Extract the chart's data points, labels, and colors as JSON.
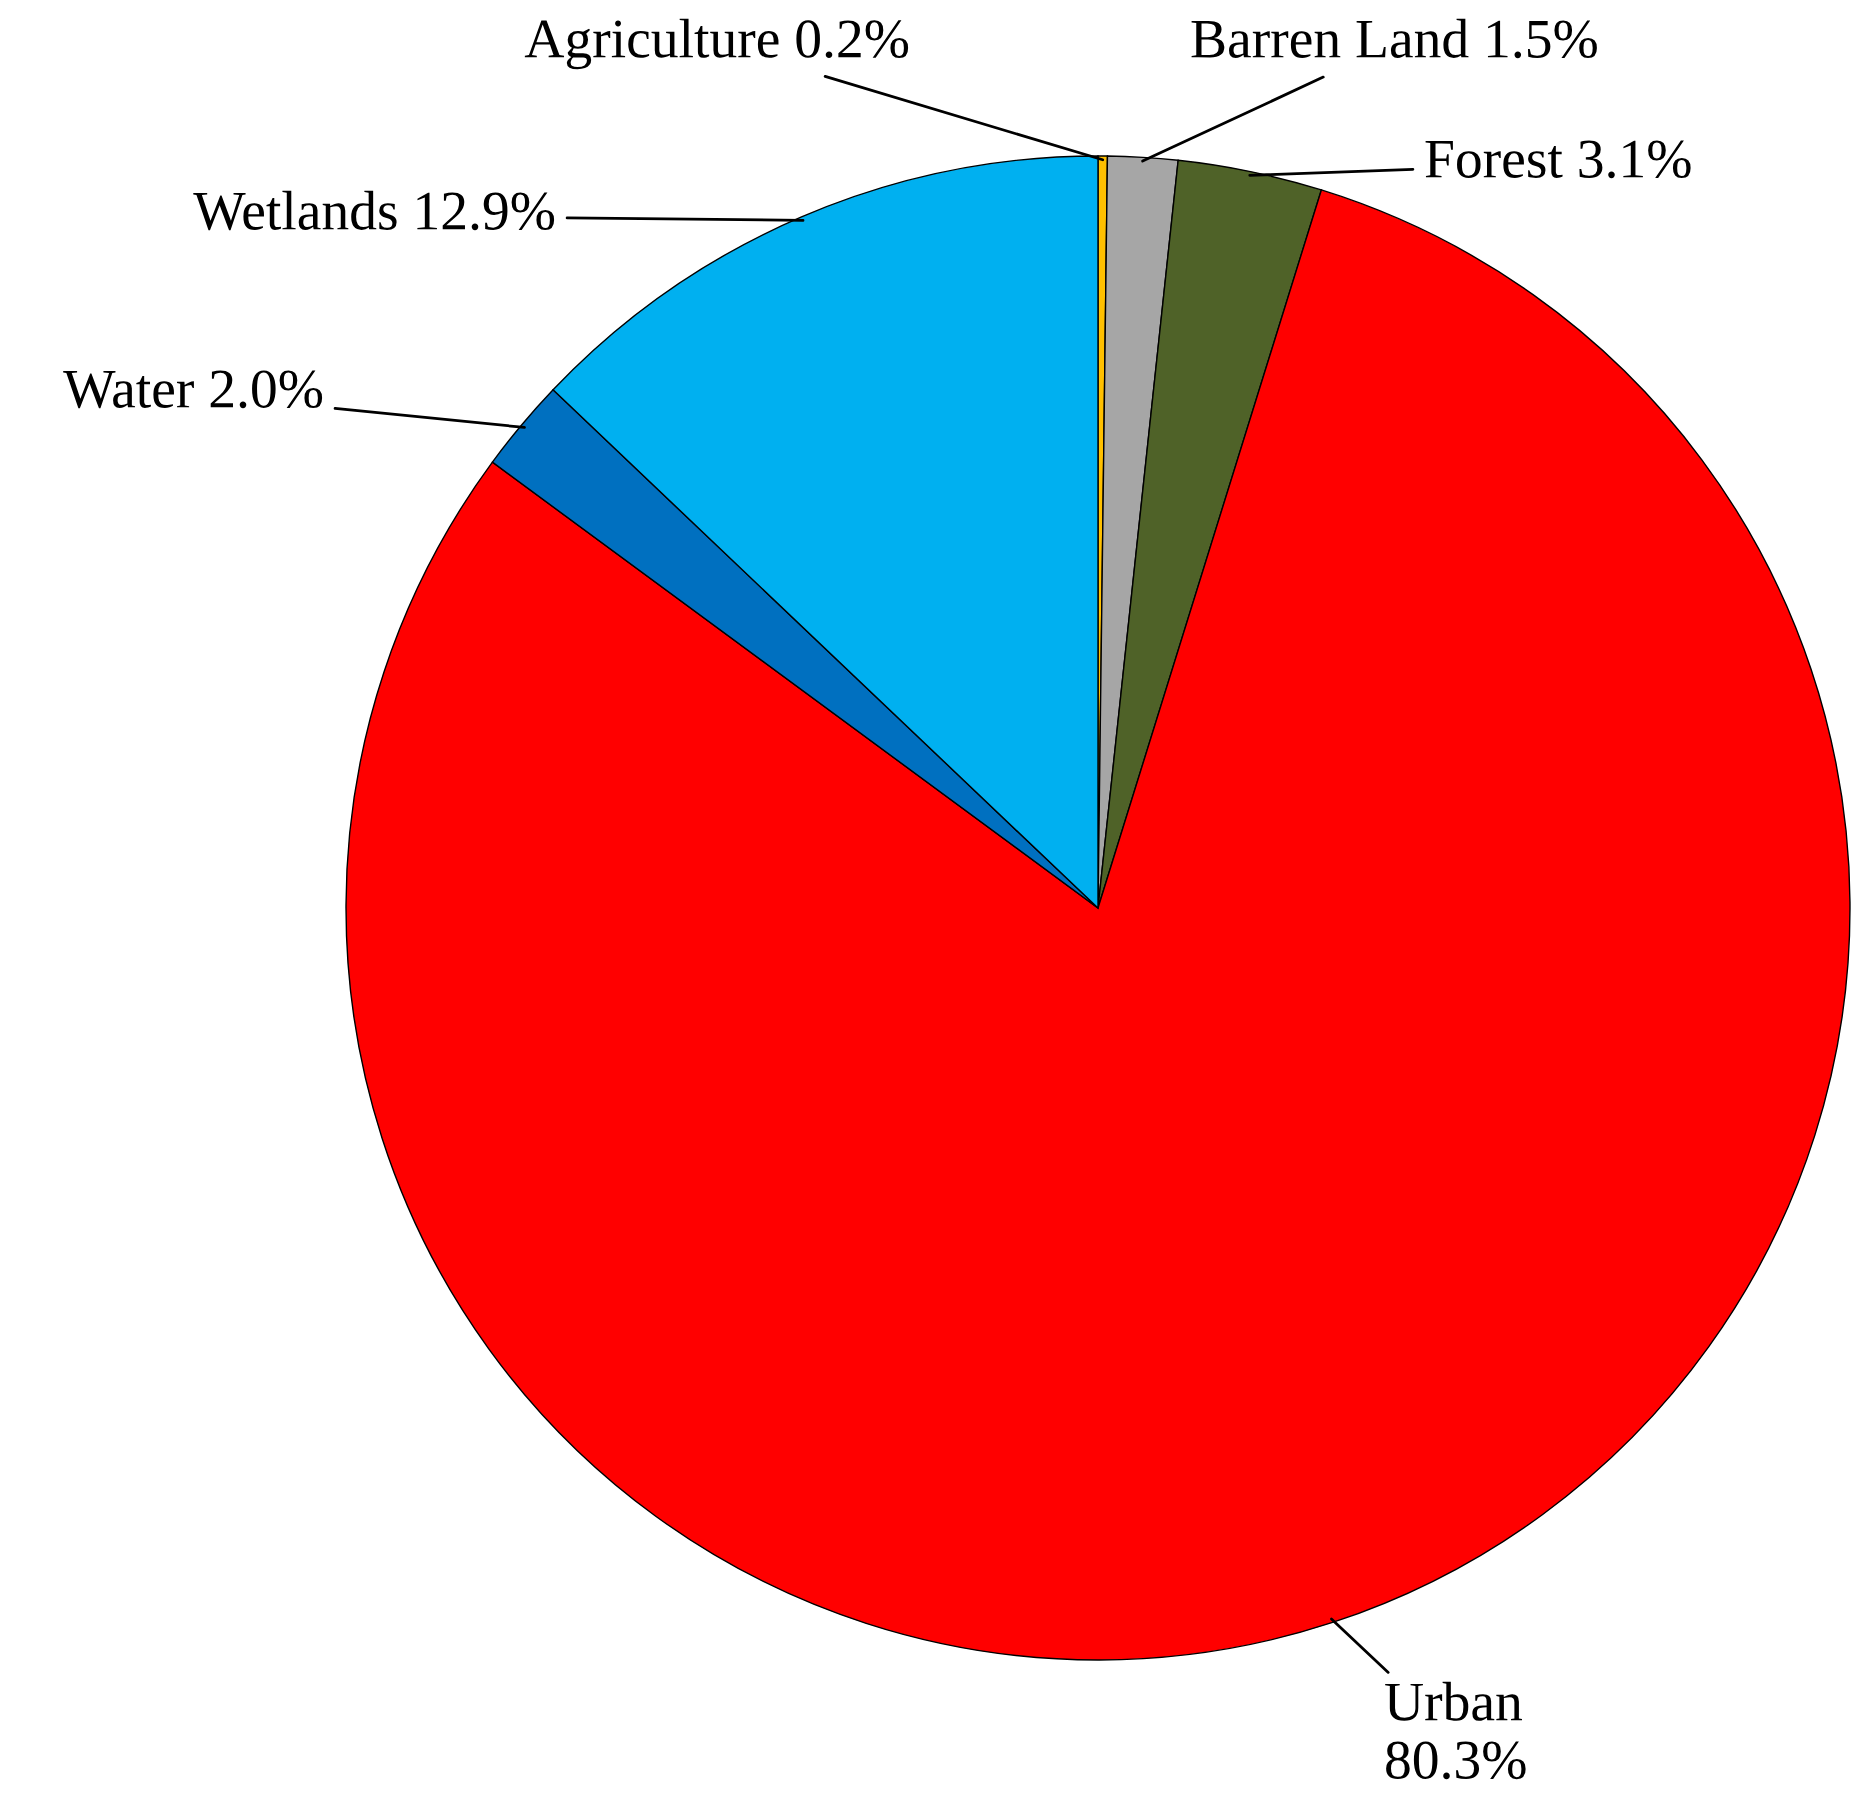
{
  "chart_data": {
    "type": "pie",
    "categories": [
      "Agriculture",
      "Barren Land",
      "Forest",
      "Urban",
      "Water",
      "Wetlands"
    ],
    "values": [
      0.2,
      1.5,
      3.1,
      80.3,
      2.0,
      12.9
    ],
    "colors": [
      "#ffc000",
      "#a6a6a6",
      "#4f6228",
      "#ff0000",
      "#0070c0",
      "#00b0f0"
    ],
    "value_labels": [
      "0.2%",
      "1.5%",
      "3.1%",
      "80.3%",
      "2.0%",
      "12.9%"
    ]
  }
}
